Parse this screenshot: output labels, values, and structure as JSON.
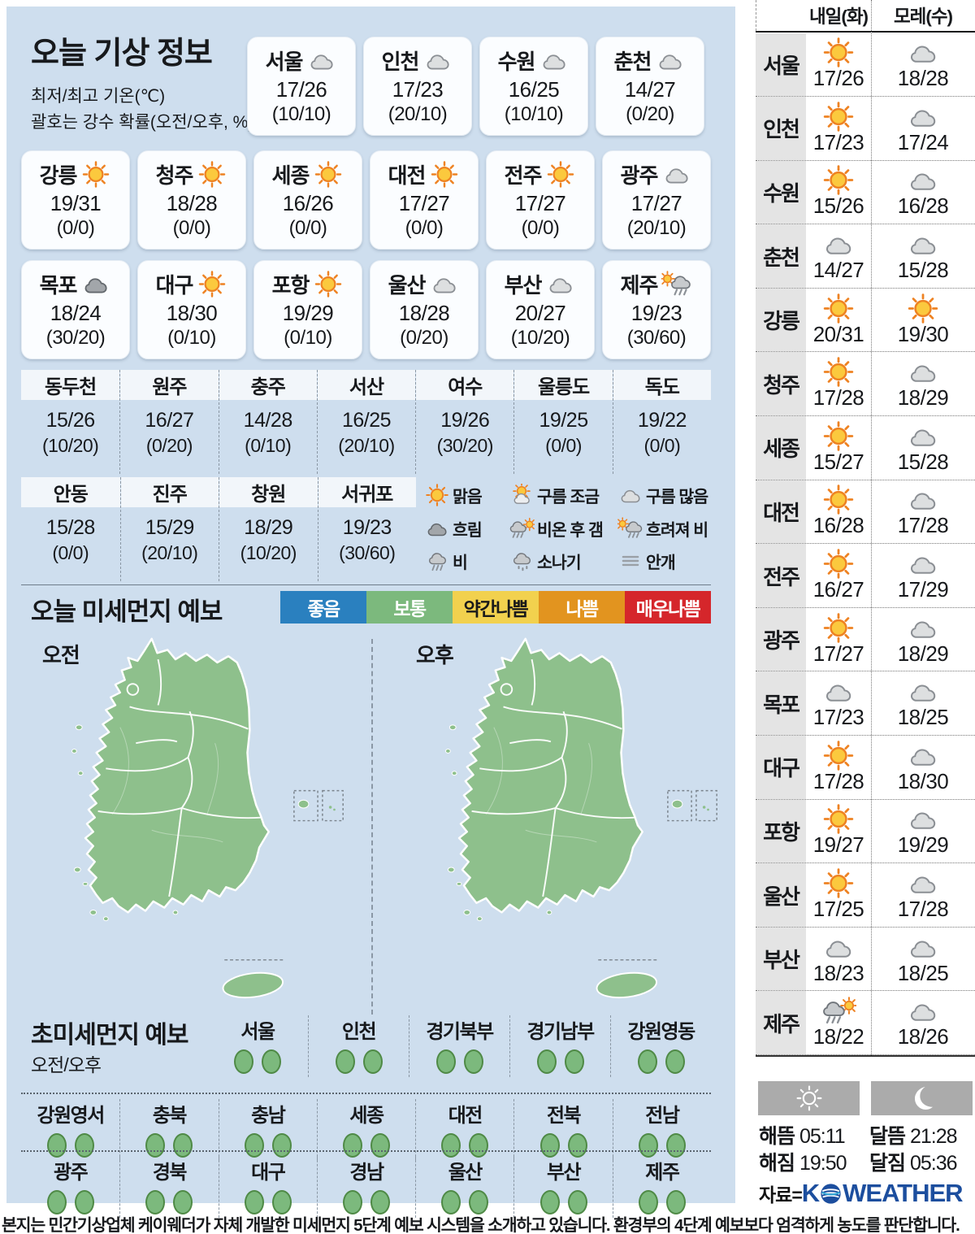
{
  "page": {
    "title": "오늘 기상 정보",
    "subtitle_line1": "최저/최고 기온(℃)",
    "subtitle_line2": "괄호는 강수 확률(오전/오후, %)"
  },
  "today": {
    "rows": [
      [
        {
          "city": "서울",
          "icon": "mostly-cloudy",
          "temp": "17/26",
          "prob": "(10/10)"
        },
        {
          "city": "인천",
          "icon": "mostly-cloudy",
          "temp": "17/23",
          "prob": "(20/10)"
        },
        {
          "city": "수원",
          "icon": "mostly-cloudy",
          "temp": "16/25",
          "prob": "(10/10)"
        },
        {
          "city": "춘천",
          "icon": "mostly-cloudy",
          "temp": "14/27",
          "prob": "(0/20)"
        }
      ],
      [
        {
          "city": "강릉",
          "icon": "sunny",
          "temp": "19/31",
          "prob": "(0/0)"
        },
        {
          "city": "청주",
          "icon": "sunny",
          "temp": "18/28",
          "prob": "(0/0)"
        },
        {
          "city": "세종",
          "icon": "sunny",
          "temp": "16/26",
          "prob": "(0/0)"
        },
        {
          "city": "대전",
          "icon": "sunny",
          "temp": "17/27",
          "prob": "(0/0)"
        },
        {
          "city": "전주",
          "icon": "sunny",
          "temp": "17/27",
          "prob": "(0/0)"
        },
        {
          "city": "광주",
          "icon": "mostly-cloudy",
          "temp": "17/27",
          "prob": "(20/10)"
        }
      ],
      [
        {
          "city": "목포",
          "icon": "overcast",
          "temp": "18/24",
          "prob": "(30/20)"
        },
        {
          "city": "대구",
          "icon": "sunny",
          "temp": "18/30",
          "prob": "(0/10)"
        },
        {
          "city": "포항",
          "icon": "sunny",
          "temp": "19/29",
          "prob": "(0/10)"
        },
        {
          "city": "울산",
          "icon": "mostly-cloudy",
          "temp": "18/28",
          "prob": "(0/20)"
        },
        {
          "city": "부산",
          "icon": "mostly-cloudy",
          "temp": "20/27",
          "prob": "(10/20)"
        },
        {
          "city": "제주",
          "icon": "cloudy-then-rain",
          "temp": "19/23",
          "prob": "(30/60)"
        }
      ]
    ]
  },
  "regional": {
    "row1": [
      {
        "name": "동두천",
        "temp": "15/26",
        "prob": "(10/20)"
      },
      {
        "name": "원주",
        "temp": "16/27",
        "prob": "(0/20)"
      },
      {
        "name": "충주",
        "temp": "14/28",
        "prob": "(0/10)"
      },
      {
        "name": "서산",
        "temp": "16/25",
        "prob": "(20/10)"
      },
      {
        "name": "여수",
        "temp": "19/26",
        "prob": "(30/20)"
      },
      {
        "name": "울릉도",
        "temp": "19/25",
        "prob": "(0/0)"
      },
      {
        "name": "독도",
        "temp": "19/22",
        "prob": "(0/0)"
      }
    ],
    "row2": [
      {
        "name": "안동",
        "temp": "15/28",
        "prob": "(0/0)"
      },
      {
        "name": "진주",
        "temp": "15/29",
        "prob": "(20/10)"
      },
      {
        "name": "창원",
        "temp": "18/29",
        "prob": "(10/20)"
      },
      {
        "name": "서귀포",
        "temp": "19/23",
        "prob": "(30/60)"
      }
    ]
  },
  "legend": [
    {
      "icon": "sunny",
      "label": "맑음"
    },
    {
      "icon": "partly-cloudy",
      "label": "구름 조금"
    },
    {
      "icon": "mostly-cloudy",
      "label": "구름 많음"
    },
    {
      "icon": "overcast",
      "label": "흐림"
    },
    {
      "icon": "rain-then-clear",
      "label": "비온 후 갬"
    },
    {
      "icon": "cloudy-then-rain",
      "label": "흐려져 비"
    },
    {
      "icon": "rain",
      "label": "비"
    },
    {
      "icon": "shower",
      "label": "소나기"
    },
    {
      "icon": "fog",
      "label": "안개"
    }
  ],
  "dust": {
    "title": "오늘 미세먼지 예보",
    "am_label": "오전",
    "pm_label": "오후",
    "scale": [
      {
        "label": "좋음",
        "color": "#2a80bf",
        "text": "#ffffff"
      },
      {
        "label": "보통",
        "color": "#7cb97d",
        "text": "#ffffff"
      },
      {
        "label": "약간나쁨",
        "color": "#f2d14e",
        "text": "#1a1a1a"
      },
      {
        "label": "나쁨",
        "color": "#e2941f",
        "text": "#ffffff"
      },
      {
        "label": "매우나쁨",
        "color": "#d5262b",
        "text": "#ffffff"
      }
    ]
  },
  "ultrafine": {
    "title": "초미세먼지 예보",
    "sublabel": "오전/오후",
    "row1": [
      {
        "name": "서울",
        "am": "보통",
        "pm": "보통"
      },
      {
        "name": "인천",
        "am": "보통",
        "pm": "보통"
      },
      {
        "name": "경기북부",
        "am": "보통",
        "pm": "보통"
      },
      {
        "name": "경기남부",
        "am": "보통",
        "pm": "보통"
      },
      {
        "name": "강원영동",
        "am": "보통",
        "pm": "보통"
      }
    ],
    "row2": [
      {
        "name": "강원영서",
        "am": "보통",
        "pm": "보통"
      },
      {
        "name": "충북",
        "am": "보통",
        "pm": "보통"
      },
      {
        "name": "충남",
        "am": "보통",
        "pm": "보통"
      },
      {
        "name": "세종",
        "am": "보통",
        "pm": "보통"
      },
      {
        "name": "대전",
        "am": "보통",
        "pm": "보통"
      },
      {
        "name": "전북",
        "am": "보통",
        "pm": "보통"
      },
      {
        "name": "전남",
        "am": "보통",
        "pm": "보통"
      }
    ],
    "row3": [
      {
        "name": "광주",
        "am": "보통",
        "pm": "보통"
      },
      {
        "name": "경북",
        "am": "보통",
        "pm": "보통"
      },
      {
        "name": "대구",
        "am": "보통",
        "pm": "보통"
      },
      {
        "name": "경남",
        "am": "보통",
        "pm": "보통"
      },
      {
        "name": "울산",
        "am": "보통",
        "pm": "보통"
      },
      {
        "name": "부산",
        "am": "보통",
        "pm": "보통"
      },
      {
        "name": "제주",
        "am": "보통",
        "pm": "보통"
      }
    ]
  },
  "forecast": {
    "col1": "내일(화)",
    "col2": "모레(수)",
    "rows": [
      {
        "city": "서울",
        "t_icon": "sunny",
        "t_temp": "17/26",
        "d_icon": "mostly-cloudy",
        "d_temp": "18/28"
      },
      {
        "city": "인천",
        "t_icon": "sunny",
        "t_temp": "17/23",
        "d_icon": "mostly-cloudy",
        "d_temp": "17/24"
      },
      {
        "city": "수원",
        "t_icon": "sunny",
        "t_temp": "15/26",
        "d_icon": "mostly-cloudy",
        "d_temp": "16/28"
      },
      {
        "city": "춘천",
        "t_icon": "mostly-cloudy",
        "t_temp": "14/27",
        "d_icon": "mostly-cloudy",
        "d_temp": "15/28"
      },
      {
        "city": "강릉",
        "t_icon": "sunny",
        "t_temp": "20/31",
        "d_icon": "sunny",
        "d_temp": "19/30"
      },
      {
        "city": "청주",
        "t_icon": "sunny",
        "t_temp": "17/28",
        "d_icon": "mostly-cloudy",
        "d_temp": "18/29"
      },
      {
        "city": "세종",
        "t_icon": "sunny",
        "t_temp": "15/27",
        "d_icon": "mostly-cloudy",
        "d_temp": "15/28"
      },
      {
        "city": "대전",
        "t_icon": "sunny",
        "t_temp": "16/28",
        "d_icon": "mostly-cloudy",
        "d_temp": "17/28"
      },
      {
        "city": "전주",
        "t_icon": "sunny",
        "t_temp": "16/27",
        "d_icon": "mostly-cloudy",
        "d_temp": "17/29"
      },
      {
        "city": "광주",
        "t_icon": "sunny",
        "t_temp": "17/27",
        "d_icon": "mostly-cloudy",
        "d_temp": "18/29"
      },
      {
        "city": "목포",
        "t_icon": "mostly-cloudy",
        "t_temp": "17/23",
        "d_icon": "mostly-cloudy",
        "d_temp": "18/25"
      },
      {
        "city": "대구",
        "t_icon": "sunny",
        "t_temp": "17/28",
        "d_icon": "mostly-cloudy",
        "d_temp": "18/30"
      },
      {
        "city": "포항",
        "t_icon": "sunny",
        "t_temp": "19/27",
        "d_icon": "mostly-cloudy",
        "d_temp": "19/29"
      },
      {
        "city": "울산",
        "t_icon": "sunny",
        "t_temp": "17/25",
        "d_icon": "mostly-cloudy",
        "d_temp": "17/28"
      },
      {
        "city": "부산",
        "t_icon": "mostly-cloudy",
        "t_temp": "18/23",
        "d_icon": "mostly-cloudy",
        "d_temp": "18/25"
      },
      {
        "city": "제주",
        "t_icon": "rain-then-clear",
        "t_temp": "18/22",
        "d_icon": "mostly-cloudy",
        "d_temp": "18/26"
      }
    ]
  },
  "sunmoon": {
    "sunrise_label": "해뜸",
    "sunrise_time": "05:11",
    "sunset_label": "해짐",
    "sunset_time": "19:50",
    "moonrise_label": "달뜸",
    "moonrise_time": "21:28",
    "moonset_label": "달짐",
    "moonset_time": "05:36"
  },
  "source": {
    "label": "자료=",
    "brand_k": "K",
    "brand_rest": "WEATHER"
  },
  "footer_note": "본지는 민간기상업체 케이웨더가 자체 개발한 미세먼지 5단계 예보 시스템을 소개하고 있습니다. 환경부의 4단계 예보보다 엄격하게 농도를 판단합니다."
}
